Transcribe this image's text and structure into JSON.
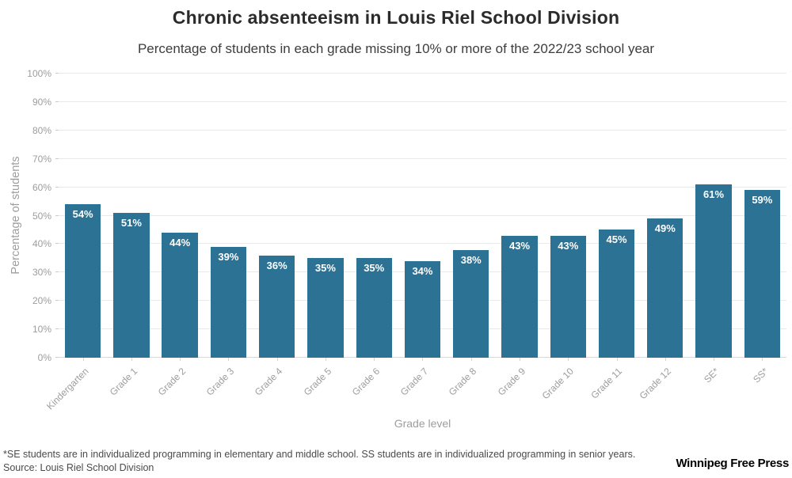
{
  "header": {
    "title": "Chronic absenteeism in Louis Riel School Division",
    "subtitle": "Percentage of students in each grade missing 10% or more of the 2022/23 school year"
  },
  "chart_data": {
    "type": "bar",
    "title": "Chronic absenteeism in Louis Riel School Division",
    "subtitle": "Percentage of students in each grade missing 10% or more of the 2022/23 school year",
    "categories": [
      "Kindergarten",
      "Grade 1",
      "Grade 2",
      "Grade 3",
      "Grade 4",
      "Grade 5",
      "Grade 6",
      "Grade 7",
      "Grade 8",
      "Grade 9",
      "Grade 10",
      "Grade 11",
      "Grade 12",
      "SE*",
      "SS*"
    ],
    "values": [
      54,
      51,
      44,
      39,
      36,
      35,
      35,
      34,
      38,
      43,
      43,
      45,
      49,
      61,
      59
    ],
    "value_labels": [
      "54%",
      "51%",
      "44%",
      "39%",
      "36%",
      "35%",
      "35%",
      "34%",
      "38%",
      "43%",
      "43%",
      "45%",
      "49%",
      "61%",
      "59%"
    ],
    "xlabel": "Grade level",
    "ylabel": "Percentage of students",
    "ylim": [
      0,
      100
    ],
    "ytick_values": [
      0,
      10,
      20,
      30,
      40,
      50,
      60,
      70,
      80,
      90,
      100
    ],
    "ytick_labels": [
      "0%",
      "10%",
      "20%",
      "30%",
      "40%",
      "50%",
      "60%",
      "70%",
      "80%",
      "90%",
      "100%"
    ],
    "grid": true,
    "legend": "none",
    "bar_color": "#2b7295",
    "bar_label_color": "#ffffff",
    "gridline_color": "#e9e9e9",
    "tick_label_color": "#9d9d9d"
  },
  "footer": {
    "footnote": "*SE students are in individualized programming in elementary and middle school. SS students are in individualized programming in senior years.",
    "source": "Source: Louis Riel School Division",
    "credit": "Winnipeg Free Press"
  }
}
